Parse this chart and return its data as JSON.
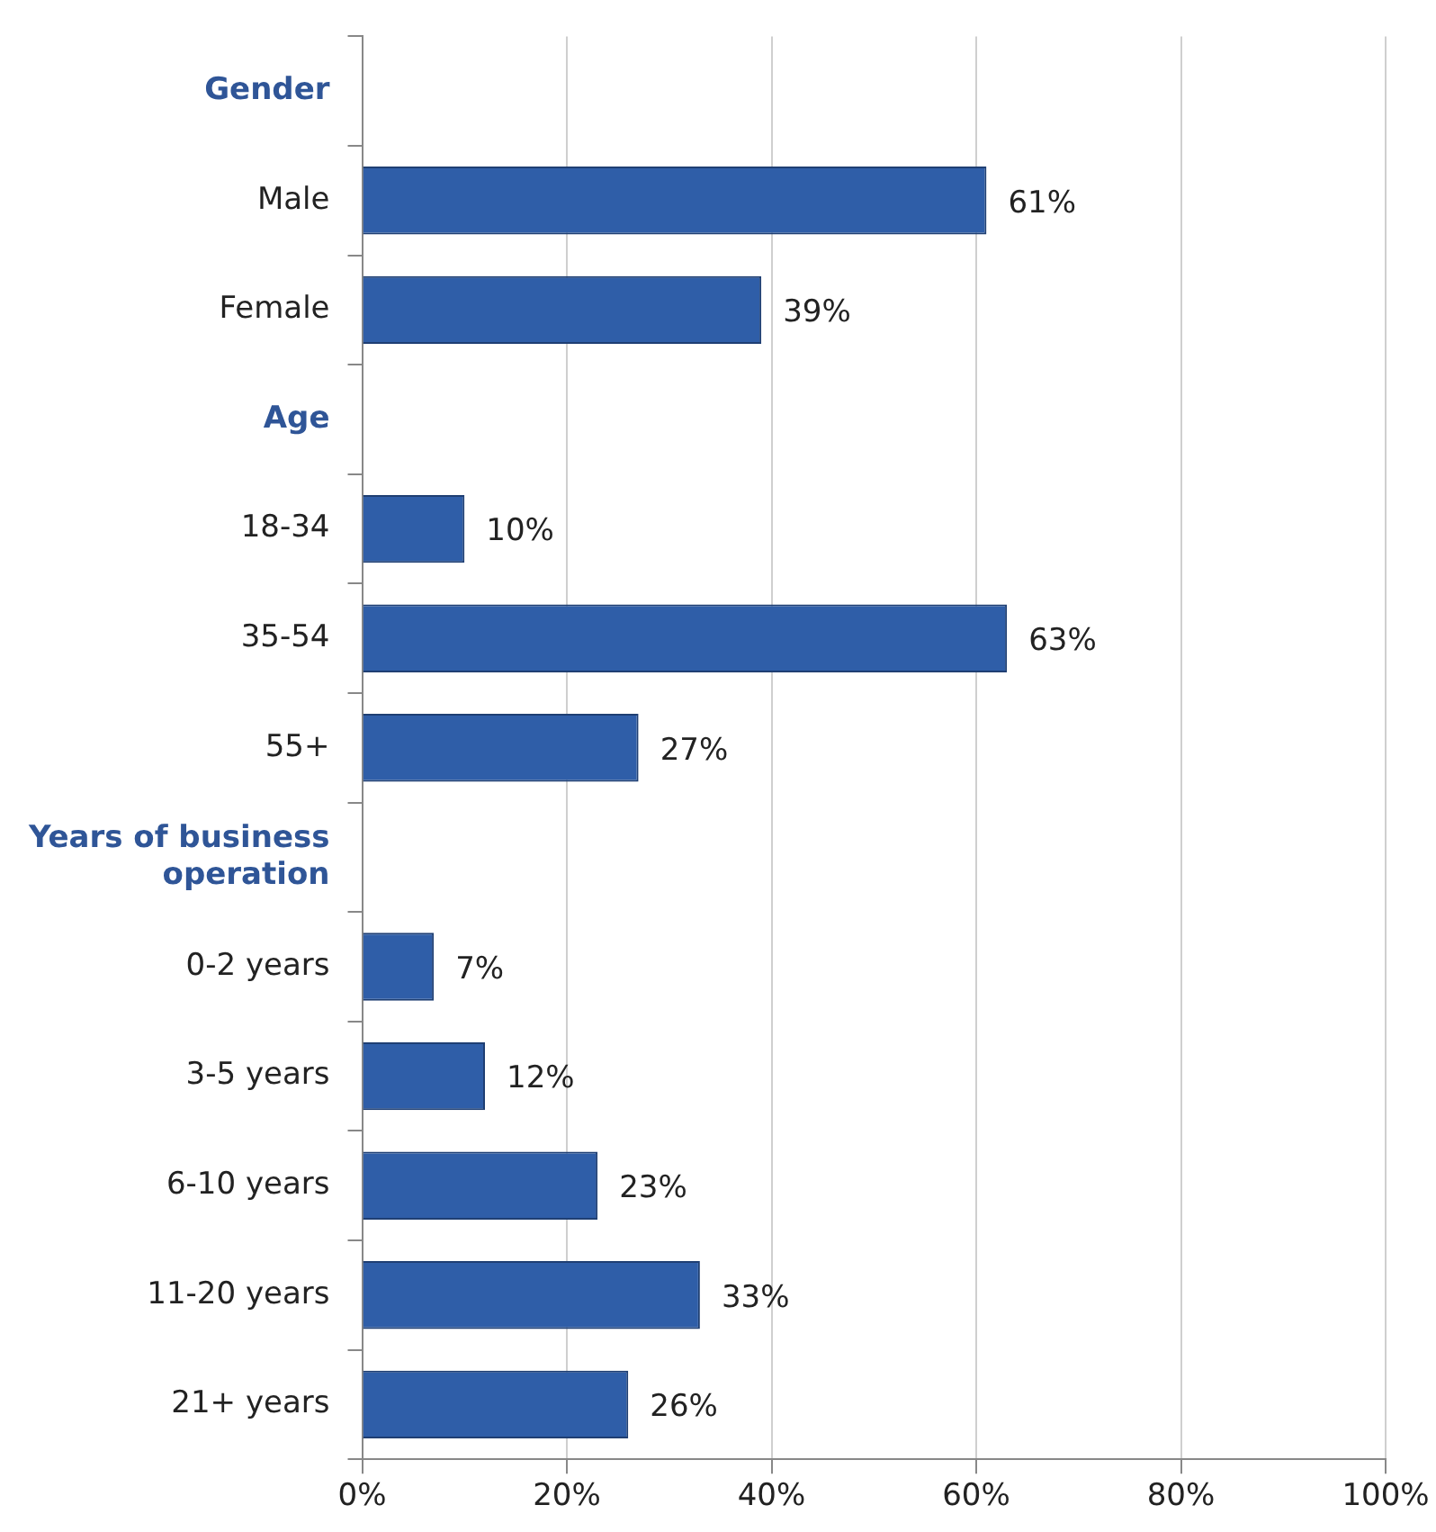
{
  "chart_data": {
    "type": "bar",
    "orientation": "horizontal",
    "categories": [
      "Gender",
      "Male",
      "Female",
      "Age",
      "18-34",
      "35-54",
      "55+",
      "Years of business operation",
      "0-2 years",
      "3-5 years",
      "6-10 years",
      "11-20 years",
      "21+ years"
    ],
    "values": [
      null,
      61,
      39,
      null,
      10,
      63,
      27,
      null,
      7,
      12,
      23,
      33,
      26
    ],
    "value_labels": [
      null,
      "61%",
      "39%",
      null,
      "10%",
      "63%",
      "27%",
      null,
      "7%",
      "12%",
      "23%",
      "33%",
      "26%"
    ],
    "color": "#2f5ea8",
    "xlim": [
      0,
      100
    ],
    "xticks": [
      {
        "value": 0,
        "label": "0%"
      },
      {
        "value": 20,
        "label": "20%"
      },
      {
        "value": 40,
        "label": "40%"
      },
      {
        "value": 60,
        "label": "60%"
      },
      {
        "value": 80,
        "label": "80%"
      },
      {
        "value": 100,
        "label": "100%"
      }
    ],
    "grid": "x",
    "legend": false
  }
}
